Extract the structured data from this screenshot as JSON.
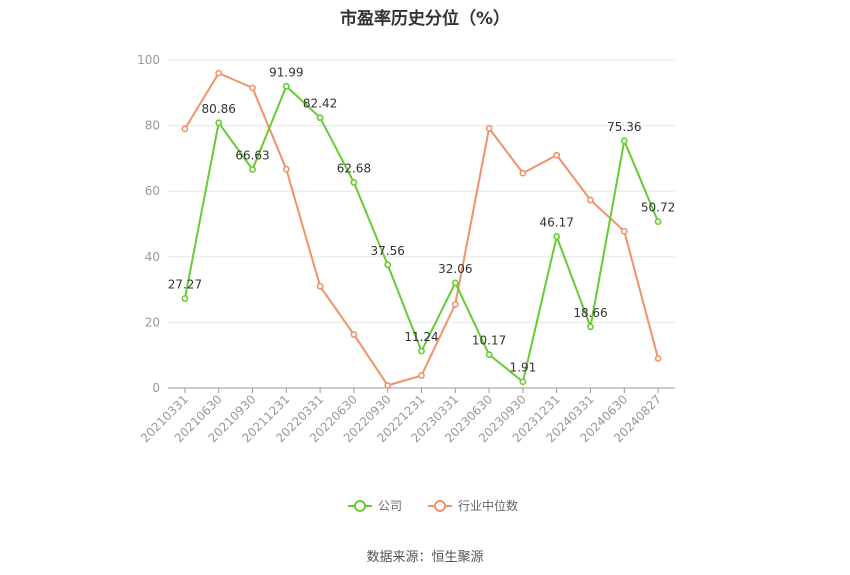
{
  "chart_data": {
    "type": "line",
    "title": "市盈率历史分位（%）",
    "source": "数据来源：恒生聚源",
    "categories": [
      "20210331",
      "20210630",
      "20210930",
      "20211231",
      "20220331",
      "20220630",
      "20220930",
      "20221231",
      "20230331",
      "20230630",
      "20230930",
      "20231231",
      "20240331",
      "20240630",
      "20240827"
    ],
    "ylim": [
      0,
      100
    ],
    "yticks": [
      0,
      20,
      40,
      60,
      80,
      100
    ],
    "grid": true,
    "legend_position": "bottom-center",
    "series": [
      {
        "name": "公司",
        "color": "#66cc33",
        "show_labels": true,
        "values": [
          27.27,
          80.86,
          66.63,
          91.99,
          82.42,
          62.68,
          37.56,
          11.24,
          32.06,
          10.17,
          1.91,
          46.17,
          18.66,
          75.36,
          50.72
        ]
      },
      {
        "name": "行业中位数",
        "color": "#f0926a",
        "show_labels": false,
        "values": [
          79,
          96,
          91.5,
          66.7,
          31,
          16.3,
          0.8,
          3.8,
          25.5,
          79.2,
          65.5,
          71,
          57.3,
          47.8,
          9
        ]
      }
    ]
  }
}
